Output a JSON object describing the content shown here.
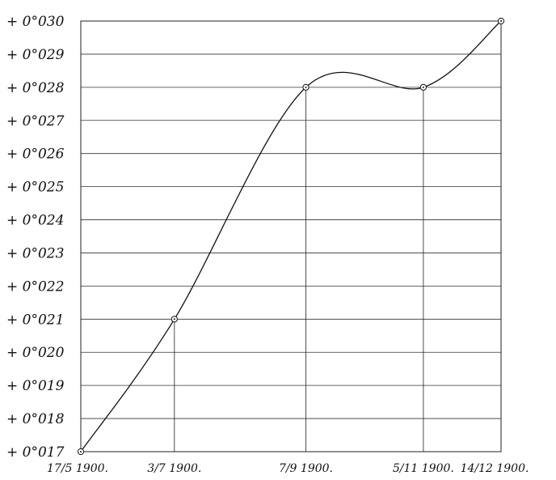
{
  "chart_data": {
    "type": "line",
    "title": "",
    "xlabel": "",
    "ylabel": "",
    "y_tick_labels": [
      "+ 0°017",
      "+ 0°018",
      "+ 0°019",
      "+ 0°020",
      "+ 0°021",
      "+ 0°022",
      "+ 0°023",
      "+ 0°024",
      "+ 0°025",
      "+ 0°026",
      "+ 0°027",
      "+ 0°028",
      "+ 0°029",
      "+ 0°030"
    ],
    "ylim": [
      0.017,
      0.03
    ],
    "y_grid": true,
    "x": [
      "1900-05-17",
      "1900-07-03",
      "1900-09-07",
      "1900-11-05",
      "1900-12-14"
    ],
    "x_tick_labels": [
      "17/5 1900.",
      "3/7 1900.",
      "7/9 1900.",
      "5/11 1900.",
      "14/12 1900."
    ],
    "y": [
      0.017,
      0.021,
      0.028,
      0.028,
      0.03
    ],
    "markers": "circle"
  }
}
